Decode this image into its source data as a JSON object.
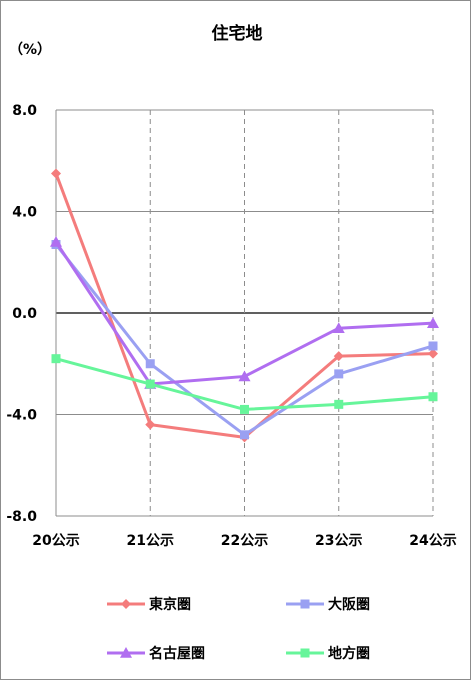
{
  "chart_data": {
    "type": "line",
    "title": "住宅地",
    "ylabel": "（%）",
    "xlabel": "",
    "categories": [
      "20公示",
      "21公示",
      "22公示",
      "23公示",
      "24公示"
    ],
    "ylim": [
      -8.0,
      8.0
    ],
    "yticks": [
      "8.0",
      "4.0",
      "0.0",
      "-4.0",
      "-8.0"
    ],
    "ytick_values": [
      8,
      4,
      0,
      -4,
      -8
    ],
    "grid": {
      "horizontal": true,
      "vertical_dashed": true
    },
    "legend_position": "bottom",
    "series": [
      {
        "name": "東京圏",
        "color": "#f47c7c",
        "marker": "diamond",
        "values": [
          5.5,
          -4.4,
          -4.9,
          -1.7,
          -1.6
        ]
      },
      {
        "name": "大阪圏",
        "color": "#9aa0f2",
        "marker": "square",
        "values": [
          2.7,
          -2.0,
          -4.8,
          -2.4,
          -1.3
        ]
      },
      {
        "name": "名古屋圏",
        "color": "#b06ef0",
        "marker": "triangle",
        "values": [
          2.8,
          -2.8,
          -2.5,
          -0.6,
          -0.4
        ]
      },
      {
        "name": "地方圏",
        "color": "#66f59a",
        "marker": "square",
        "values": [
          -1.8,
          -2.8,
          -3.8,
          -3.6,
          -3.3
        ]
      }
    ]
  }
}
